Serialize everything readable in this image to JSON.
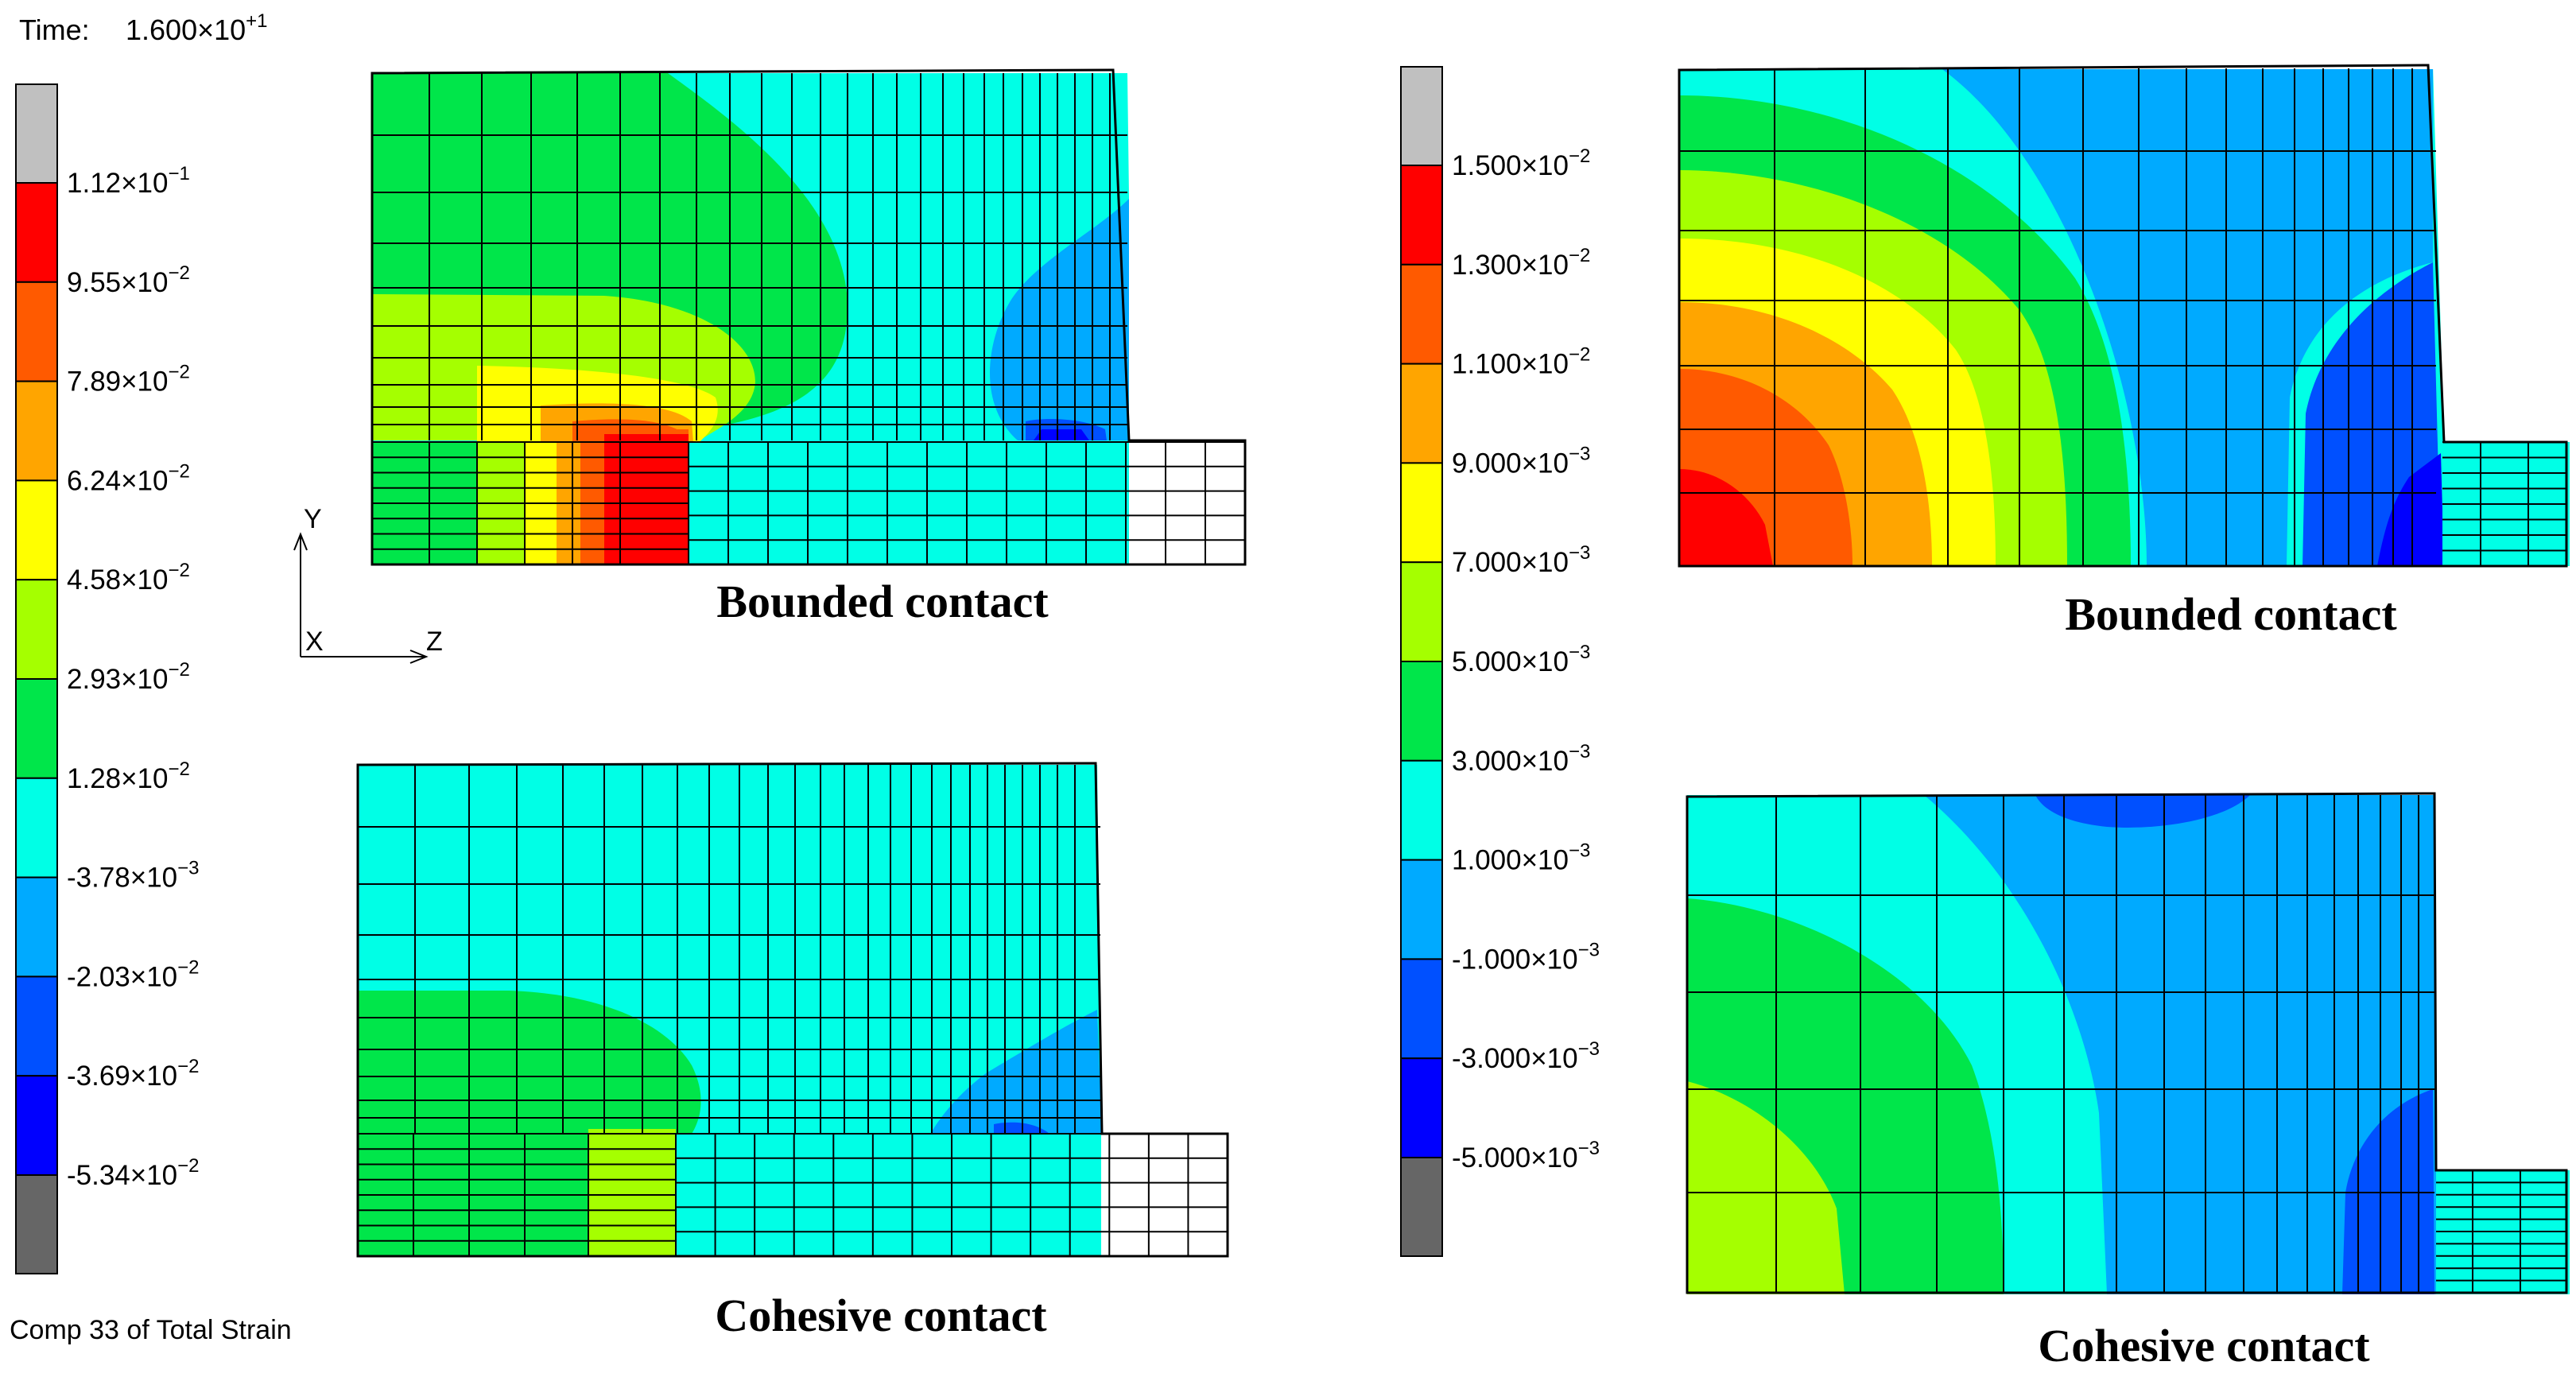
{
  "time_label": "Time:",
  "time_mantissa": "1.600×10",
  "time_exponent": "+1",
  "component_label": "Comp 33 of Total Strain",
  "axes": {
    "y": "Y",
    "x": "X",
    "z": "Z"
  },
  "colors": {
    "band_top": "#c0c0c0",
    "band_bottom": "#666666",
    "bands": [
      "#ff0000",
      "#ff5a00",
      "#ffa500",
      "#ffff00",
      "#a5ff00",
      "#00e64a",
      "#00ffe6",
      "#00aaff",
      "#0050ff",
      "#0000ff"
    ],
    "mesh_line": "#000000"
  },
  "left_scale": {
    "labels": [
      {
        "m": "1.12×10",
        "e": "−1"
      },
      {
        "m": "9.55×10",
        "e": "−2"
      },
      {
        "m": "7.89×10",
        "e": "−2"
      },
      {
        "m": "6.24×10",
        "e": "−2"
      },
      {
        "m": "4.58×10",
        "e": "−2"
      },
      {
        "m": "2.93×10",
        "e": "−2"
      },
      {
        "m": "1.28×10",
        "e": "−2"
      },
      {
        "m": "-3.78×10",
        "e": "−3"
      },
      {
        "m": "-2.03×10",
        "e": "−2"
      },
      {
        "m": "-3.69×10",
        "e": "−2"
      },
      {
        "m": "-5.34×10",
        "e": "−2"
      }
    ]
  },
  "right_scale": {
    "labels": [
      {
        "m": "1.500×10",
        "e": "−2"
      },
      {
        "m": "1.300×10",
        "e": "−2"
      },
      {
        "m": "1.100×10",
        "e": "−2"
      },
      {
        "m": "9.000×10",
        "e": "−3"
      },
      {
        "m": "7.000×10",
        "e": "−3"
      },
      {
        "m": "5.000×10",
        "e": "−3"
      },
      {
        "m": "3.000×10",
        "e": "−3"
      },
      {
        "m": "1.000×10",
        "e": "−3"
      },
      {
        "m": "-1.000×10",
        "e": "−3"
      },
      {
        "m": "-3.000×10",
        "e": "−3"
      },
      {
        "m": "-5.000×10",
        "e": "−3"
      }
    ]
  },
  "captions": {
    "left_top": "Bounded contact",
    "left_bottom": "Cohesive contact",
    "right_top": "Bounded contact",
    "right_bottom": "Cohesive contact"
  }
}
